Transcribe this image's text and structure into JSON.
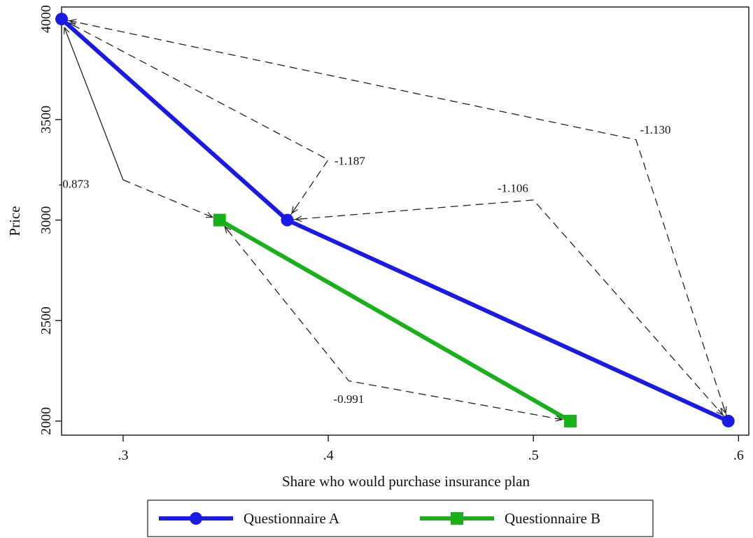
{
  "chart_data": {
    "type": "line",
    "xlabel": "Share who would purchase insurance plan",
    "ylabel": "Price",
    "xlim": [
      0.27,
      0.605
    ],
    "ylim": [
      1930,
      4060
    ],
    "x_ticks": [
      {
        "value": 0.3,
        "label": ".3"
      },
      {
        "value": 0.4,
        "label": ".4"
      },
      {
        "value": 0.5,
        "label": ".5"
      },
      {
        "value": 0.6,
        "label": ".6"
      }
    ],
    "y_ticks": [
      {
        "value": 2000,
        "label": "2000"
      },
      {
        "value": 2500,
        "label": "2500"
      },
      {
        "value": 3000,
        "label": "3000"
      },
      {
        "value": 3500,
        "label": "3500"
      },
      {
        "value": 4000,
        "label": "4000"
      }
    ],
    "grid": false,
    "legend_position": "bottom",
    "series": [
      {
        "name": "Questionnaire A",
        "color": "#1a1ae6",
        "marker": "circle",
        "points": [
          {
            "x": 0.27,
            "y": 4000
          },
          {
            "x": 0.38,
            "y": 3000
          },
          {
            "x": 0.595,
            "y": 2000
          }
        ]
      },
      {
        "name": "Questionnaire B",
        "color": "#19b019",
        "marker": "square",
        "points": [
          {
            "x": 0.347,
            "y": 3000
          },
          {
            "x": 0.518,
            "y": 2000
          }
        ]
      }
    ],
    "annotations": [
      {
        "label": "-1.187",
        "style": "dashed",
        "from": {
          "x": 0.27,
          "y": 4000
        },
        "via": {
          "x": 0.4,
          "y": 3300
        },
        "to": {
          "x": 0.38,
          "y": 3000
        },
        "label_at": {
          "x": 0.403,
          "y": 3275
        },
        "anchor": "start"
      },
      {
        "label": "-1.130",
        "style": "dashed",
        "from": {
          "x": 0.595,
          "y": 2000
        },
        "via": {
          "x": 0.55,
          "y": 3400
        },
        "to": {
          "x": 0.27,
          "y": 4000
        },
        "label_at": {
          "x": 0.552,
          "y": 3430
        },
        "anchor": "start"
      },
      {
        "label": "-1.106",
        "style": "dashed",
        "from": {
          "x": 0.38,
          "y": 3000
        },
        "via": {
          "x": 0.5,
          "y": 3100
        },
        "to": {
          "x": 0.595,
          "y": 2000
        },
        "label_at": {
          "x": 0.49,
          "y": 3140
        },
        "anchor": "middle"
      },
      {
        "label": "-0.873",
        "style": "solid-dashed",
        "from": {
          "x": 0.347,
          "y": 3000
        },
        "via": {
          "x": 0.3,
          "y": 3200
        },
        "to": {
          "x": 0.27,
          "y": 4000
        },
        "label_at": {
          "x": 0.276,
          "y": 3160
        },
        "anchor": "middle"
      },
      {
        "label": "-0.991",
        "style": "dashed",
        "from": {
          "x": 0.347,
          "y": 3000
        },
        "via": {
          "x": 0.41,
          "y": 2200
        },
        "to": {
          "x": 0.518,
          "y": 2000
        },
        "label_at": {
          "x": 0.41,
          "y": 2090
        },
        "anchor": "middle"
      }
    ]
  }
}
